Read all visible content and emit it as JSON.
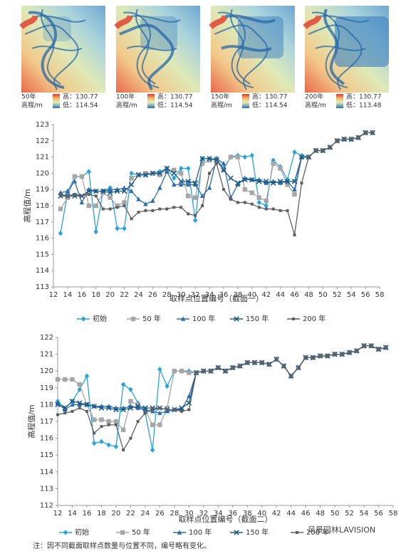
{
  "maps": [
    {
      "label": "50年",
      "unit": "高程/m",
      "high": "高：130.77",
      "low": "低：114.54"
    },
    {
      "label": "100年",
      "unit": "高程/m",
      "high": "高：130.77",
      "low": "低：114.54"
    },
    {
      "label": "150年",
      "unit": "高程/m",
      "high": "高：130.77",
      "low": "低：114.54"
    },
    {
      "label": "200年",
      "unit": "高程/m",
      "high": "高：130.77",
      "low": "低：113.48"
    }
  ],
  "chart_data": [
    {
      "type": "line",
      "x_label": "取样点位置编号（截面一）",
      "y_label": "高程值/m",
      "x": [
        13,
        14,
        15,
        16,
        17,
        18,
        19,
        20,
        21,
        22,
        23,
        24,
        25,
        26,
        27,
        28,
        29,
        30,
        31,
        32,
        33,
        34,
        35,
        36,
        37,
        38,
        39,
        40,
        41,
        42,
        43,
        44,
        45,
        46,
        47,
        48,
        49,
        50,
        51,
        52,
        53,
        54,
        55,
        56,
        57
      ],
      "xlim": [
        12,
        58
      ],
      "xticks": [
        12,
        14,
        16,
        18,
        20,
        22,
        24,
        26,
        28,
        30,
        32,
        34,
        36,
        38,
        40,
        42,
        44,
        46,
        48,
        50,
        52,
        54,
        56,
        58
      ],
      "ylim": [
        113,
        123
      ],
      "yticks": [
        113,
        114,
        115,
        116,
        117,
        118,
        119,
        120,
        121,
        122,
        123
      ],
      "series": [
        {
          "name": "初始",
          "color": "#29a3dc",
          "marker": "diamond",
          "values": [
            116.3,
            118.8,
            119.8,
            119.8,
            120.1,
            116.4,
            118.9,
            119.1,
            116.6,
            116.6,
            120.0,
            119.9,
            119.9,
            120.0,
            120.1,
            120.3,
            119.7,
            120.3,
            120.3,
            117.1,
            120.9,
            120.9,
            120.9,
            120.3,
            121.0,
            121.1,
            121.0,
            121.1,
            118.2,
            118.0,
            120.8,
            120.4,
            119.6,
            121.3,
            121.1,
            121.0,
            121.4,
            121.4,
            121.6,
            122.0,
            122.1,
            122.1,
            122.2,
            122.5,
            122.5
          ]
        },
        {
          "name": "50 年",
          "color": "#a6a6a6",
          "marker": "square",
          "values": [
            117.8,
            118.5,
            119.8,
            119.8,
            118.0,
            118.0,
            118.8,
            118.5,
            118.0,
            118.2,
            119.7,
            119.9,
            120.0,
            120.0,
            119.9,
            120.2,
            120.2,
            120.0,
            118.6,
            118.5,
            120.6,
            120.8,
            120.9,
            120.2,
            121.0,
            121.0,
            119.0,
            118.8,
            118.5,
            118.3,
            120.6,
            120.3,
            119.3,
            118.7,
            121.0,
            121.0,
            121.4,
            121.4,
            121.6,
            122.0,
            122.1,
            122.1,
            122.2,
            122.5,
            122.5
          ]
        },
        {
          "name": "100 年",
          "color": "#2b6cb0",
          "marker": "triangle",
          "values": [
            118.8,
            118.9,
            119.5,
            118.2,
            119.0,
            118.9,
            118.9,
            119.0,
            119.0,
            119.1,
            118.9,
            118.4,
            118.1,
            118.3,
            119.1,
            120.1,
            119.3,
            119.3,
            119.3,
            119.3,
            118.6,
            119.1,
            120.9,
            120.6,
            118.5,
            119.3,
            119.7,
            119.6,
            119.6,
            119.4,
            119.5,
            119.4,
            119.5,
            119.0,
            121.0,
            121.0,
            121.4,
            121.4,
            121.6,
            122.0,
            122.1,
            122.1,
            122.2,
            122.5,
            122.5
          ]
        },
        {
          "name": "150 年",
          "color": "#1d5a86",
          "marker": "x",
          "values": [
            118.6,
            118.6,
            118.6,
            118.6,
            118.9,
            118.9,
            118.9,
            118.8,
            118.9,
            118.9,
            119.3,
            119.9,
            119.9,
            120.0,
            120.0,
            120.3,
            120.0,
            119.5,
            119.5,
            119.4,
            120.9,
            120.9,
            120.8,
            120.2,
            119.7,
            119.4,
            119.6,
            119.6,
            119.5,
            119.5,
            119.4,
            119.5,
            119.5,
            119.5,
            121.0,
            121.0,
            121.4,
            121.4,
            121.6,
            122.0,
            122.1,
            122.1,
            122.2,
            122.5,
            122.5
          ]
        },
        {
          "name": "200 年",
          "color": "#5f5f5f",
          "marker": "smallsquare",
          "values": [
            118.7,
            118.6,
            118.7,
            118.6,
            118.7,
            118.6,
            117.8,
            117.8,
            117.9,
            118.0,
            117.2,
            117.6,
            117.7,
            117.7,
            117.8,
            117.8,
            117.9,
            117.9,
            117.5,
            117.4,
            118.0,
            120.0,
            120.6,
            119.0,
            118.4,
            118.2,
            118.2,
            118.1,
            117.9,
            117.8,
            117.8,
            117.7,
            117.7,
            116.2,
            119.4,
            121.0,
            121.4,
            121.4,
            121.6,
            122.0,
            122.1,
            122.1,
            122.2,
            122.5,
            122.5
          ]
        }
      ]
    },
    {
      "type": "line",
      "x_label": "取样点位置编号（截面二）",
      "y_label": "高程值/m",
      "x": [
        12,
        13,
        14,
        15,
        16,
        17,
        18,
        19,
        20,
        21,
        22,
        23,
        24,
        25,
        26,
        27,
        28,
        29,
        30,
        31,
        32,
        33,
        34,
        35,
        36,
        37,
        38,
        39,
        40,
        41,
        42,
        43,
        44,
        45,
        46,
        47,
        48,
        49,
        50,
        51,
        52,
        53,
        54,
        55,
        56,
        57
      ],
      "xlim": [
        12,
        58
      ],
      "xticks": [
        12,
        14,
        16,
        18,
        20,
        22,
        24,
        26,
        28,
        30,
        32,
        34,
        36,
        38,
        40,
        42,
        44,
        46,
        48,
        50,
        52,
        54,
        56,
        58
      ],
      "ylim": [
        112,
        122
      ],
      "yticks": [
        112,
        113,
        114,
        115,
        116,
        117,
        118,
        119,
        120,
        121,
        122
      ],
      "series": [
        {
          "name": "初始",
          "color": "#29a3dc",
          "marker": "diamond",
          "values": [
            118.2,
            117.8,
            118.2,
            118.9,
            119.7,
            115.7,
            115.8,
            115.6,
            115.5,
            119.2,
            118.9,
            118.1,
            117.5,
            115.3,
            120.1,
            119.1,
            120.0,
            120.0,
            120.0,
            119.9,
            120.0,
            120.0,
            120.2,
            120.0,
            120.2,
            120.3,
            120.5,
            120.5,
            120.5,
            120.4,
            120.7,
            120.3,
            119.7,
            120.2,
            120.8,
            120.8,
            120.9,
            120.9,
            121.0,
            121.0,
            121.1,
            121.2,
            121.5,
            121.5,
            121.3,
            121.4
          ]
        },
        {
          "name": "50 年",
          "color": "#a6a6a6",
          "marker": "square",
          "values": [
            119.5,
            119.5,
            119.5,
            119.2,
            118.0,
            117.1,
            117.1,
            117.0,
            117.0,
            116.5,
            118.2,
            118.0,
            117.7,
            116.8,
            116.8,
            117.8,
            120.0,
            120.0,
            119.9,
            119.9,
            120.0,
            120.0,
            120.2,
            120.0,
            120.2,
            120.3,
            120.5,
            120.5,
            120.5,
            120.4,
            120.7,
            120.3,
            119.7,
            120.2,
            120.8,
            120.8,
            120.9,
            120.9,
            121.0,
            121.0,
            121.1,
            121.2,
            121.5,
            121.5,
            121.3,
            121.4
          ]
        },
        {
          "name": "100 年",
          "color": "#2b6cb0",
          "marker": "triangle",
          "values": [
            118.1,
            117.7,
            118.0,
            118.0,
            118.0,
            117.9,
            117.9,
            117.9,
            117.8,
            117.8,
            117.9,
            117.8,
            117.7,
            117.6,
            117.5,
            117.6,
            117.7,
            117.7,
            118.5,
            119.9,
            120.0,
            120.0,
            120.2,
            120.0,
            120.2,
            120.3,
            120.5,
            120.5,
            120.5,
            120.4,
            120.7,
            120.3,
            119.7,
            120.2,
            120.8,
            120.8,
            120.9,
            120.9,
            121.0,
            121.0,
            121.1,
            121.2,
            121.5,
            121.5,
            121.3,
            121.4
          ]
        },
        {
          "name": "150 年",
          "color": "#1d5a86",
          "marker": "x",
          "values": [
            118.0,
            117.8,
            118.2,
            118.1,
            118.0,
            117.9,
            117.8,
            117.8,
            117.7,
            117.7,
            117.8,
            117.9,
            117.8,
            117.8,
            117.8,
            117.7,
            117.7,
            117.8,
            118.1,
            119.9,
            120.0,
            120.0,
            120.2,
            120.0,
            120.2,
            120.3,
            120.5,
            120.5,
            120.5,
            120.4,
            120.7,
            120.3,
            119.7,
            120.2,
            120.8,
            120.8,
            120.9,
            120.9,
            121.0,
            121.0,
            121.1,
            121.2,
            121.5,
            121.5,
            121.3,
            121.4
          ]
        },
        {
          "name": "200 年",
          "color": "#5f5f5f",
          "marker": "smallsquare",
          "values": [
            117.4,
            117.5,
            117.6,
            117.8,
            117.6,
            116.3,
            116.7,
            116.8,
            116.8,
            115.3,
            116.0,
            117.0,
            117.5,
            117.7,
            117.8,
            117.7,
            117.7,
            117.6,
            117.7,
            119.9,
            120.0,
            120.0,
            120.2,
            120.0,
            120.2,
            120.3,
            120.5,
            120.5,
            120.5,
            120.4,
            120.7,
            120.3,
            119.7,
            120.2,
            120.8,
            120.8,
            120.9,
            120.9,
            121.0,
            121.0,
            121.1,
            121.2,
            121.5,
            121.5,
            121.3,
            121.4
          ]
        }
      ]
    }
  ],
  "note": "注：因不同截面取样点数量与位置不同，编号略有变化。",
  "watermark": "风景园林LAVISION"
}
